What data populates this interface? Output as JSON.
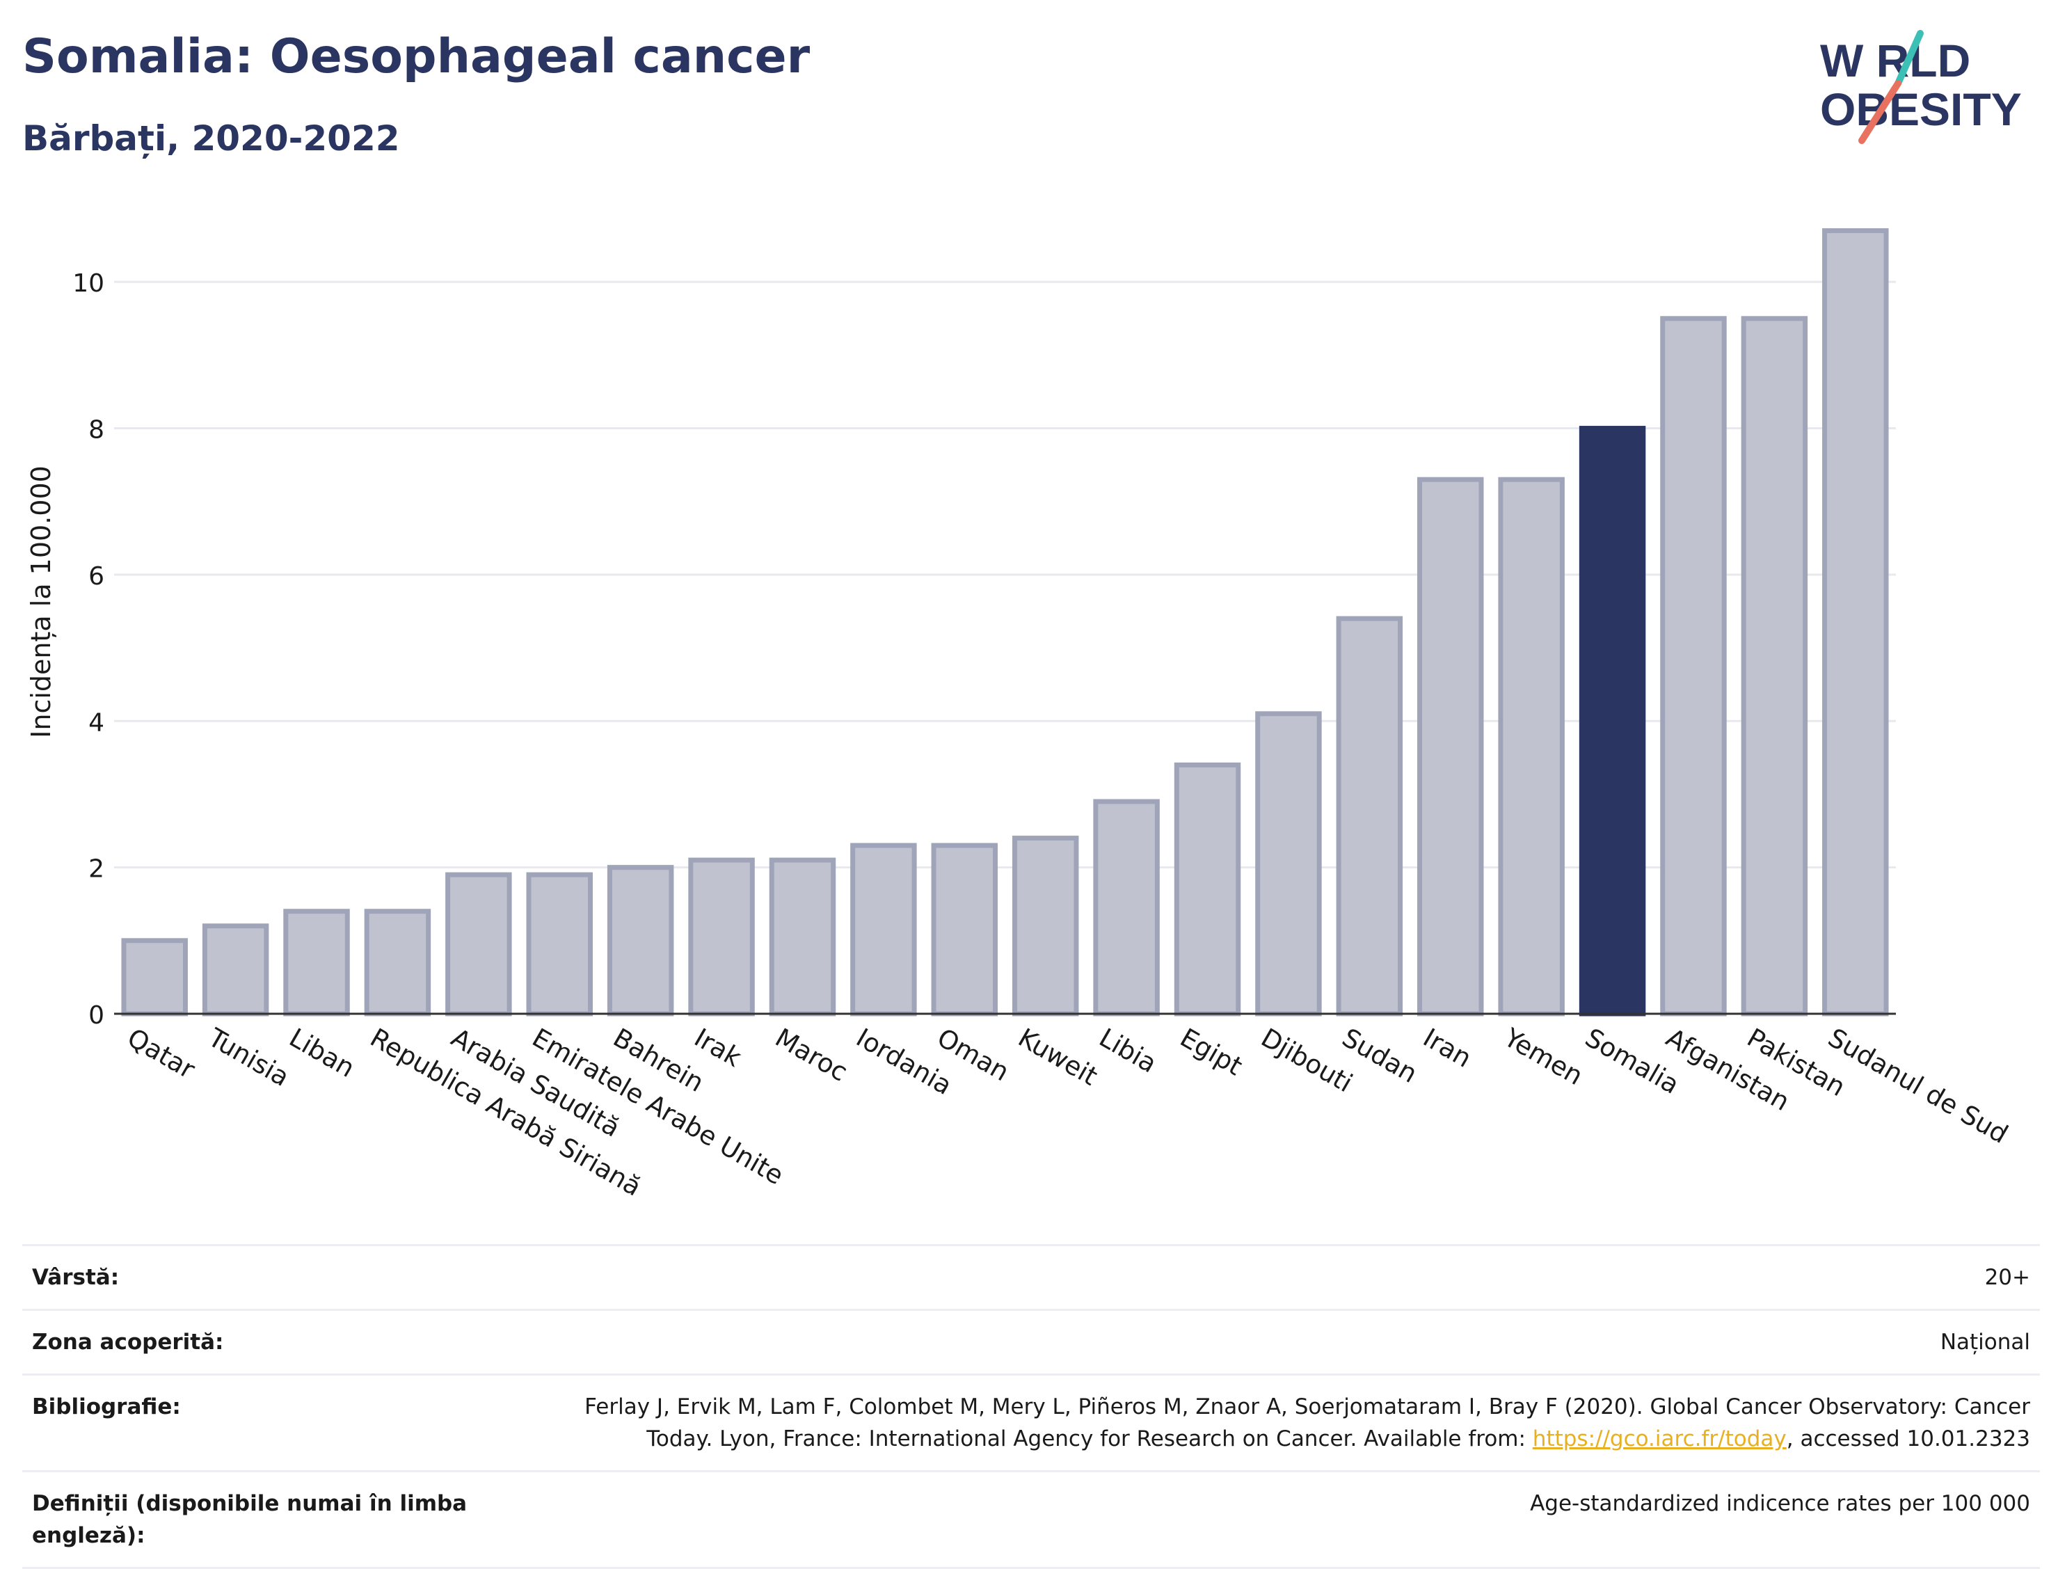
{
  "header": {
    "title": "Somalia: Oesophageal cancer",
    "subtitle": "Bărbați, 2020-2022"
  },
  "logo": {
    "line1": "W  RLD",
    "line2": "OBESITY",
    "name": "world-obesity-logo"
  },
  "chart_data": {
    "type": "bar",
    "ylabel": "Incidența la 100.000",
    "ylim": [
      0,
      11
    ],
    "yticks": [
      0,
      2,
      4,
      6,
      8,
      10
    ],
    "grid": true,
    "highlight": "Somalia",
    "categories": [
      "Qatar",
      "Tunisia",
      "Liban",
      "Republica Arabă Siriană",
      "Arabia Saudită",
      "Emiratele Arabe Unite",
      "Bahrein",
      "Irak",
      "Maroc",
      "Iordania",
      "Oman",
      "Kuweit",
      "Libia",
      "Egipt",
      "Djibouti",
      "Sudan",
      "Iran",
      "Yemen",
      "Somalia",
      "Afganistan",
      "Pakistan",
      "Sudanul de Sud"
    ],
    "values": [
      1.0,
      1.2,
      1.4,
      1.4,
      1.9,
      1.9,
      2.0,
      2.1,
      2.1,
      2.3,
      2.3,
      2.4,
      2.9,
      3.4,
      4.1,
      5.4,
      7.3,
      7.3,
      8.0,
      9.5,
      9.5,
      10.7
    ],
    "colors": {
      "bar": "#c0c3cf",
      "bar_stroke": "#9fa4b8",
      "highlight": "#2b3562",
      "grid": "#e8e9ee",
      "axis": "#333333"
    }
  },
  "info": {
    "age_label": "Vârstă:",
    "age_value": "20+",
    "coverage_label": "Zona acoperită:",
    "coverage_value": "Național",
    "biblio_label": "Bibliografie:",
    "biblio_line1": "Ferlay J, Ervik M, Lam F, Colombet M, Mery L, Piñeros M, Znaor A, Soerjomataram I, Bray F (2020). Global Cancer Observatory: Cancer",
    "biblio_line2_pre": "Today. Lyon, France: International Agency for Research on Cancer. Available from: ",
    "biblio_link": "https://gco.iarc.fr/today",
    "biblio_line2_post": ", accessed 10.01.2323",
    "def_label": "Definiții (disponibile numai în limba engleză):",
    "def_value": "Age-standardized indicence rates per 100 000"
  }
}
